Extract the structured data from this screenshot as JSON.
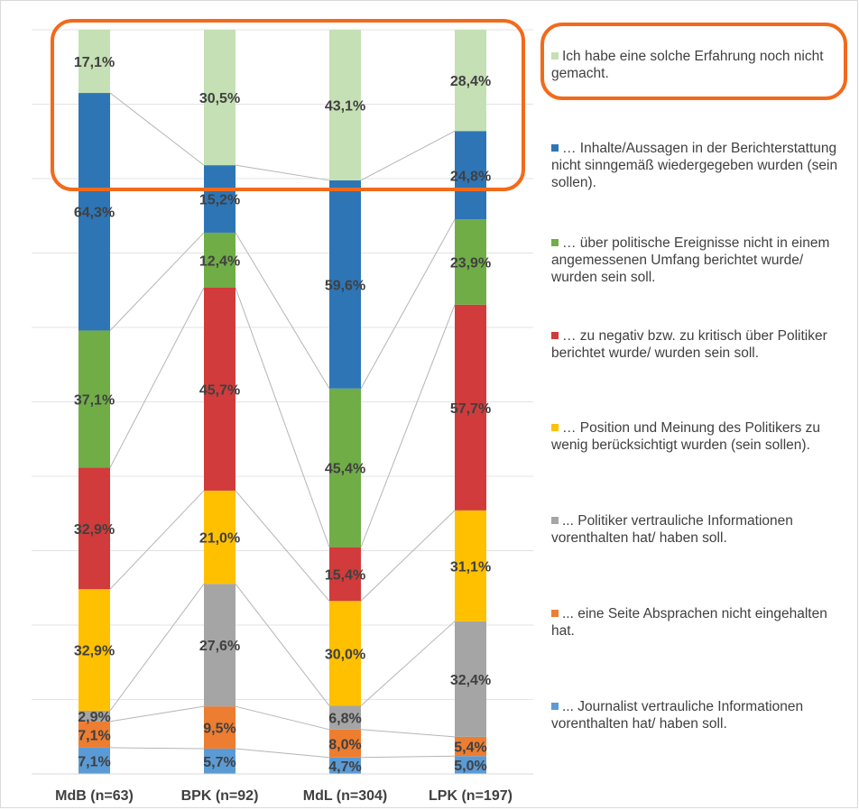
{
  "chart_data": {
    "type": "bar",
    "stacked": true,
    "percent_stacked": true,
    "categories": [
      "MdB (n=63)",
      "BPK (n=92)",
      "MdL (n=304)",
      "LPK (n=197)"
    ],
    "series": [
      {
        "name": "...  Journalist vertrauliche Informationen vorenthalten hat/ haben soll.",
        "color": "#5b9bd5",
        "values": [
          7.1,
          5.7,
          4.7,
          5.0
        ],
        "labels": [
          "7,1%",
          "5,7%",
          "4,7%",
          "5,0%"
        ]
      },
      {
        "name": "... eine Seite Absprachen nicht eingehalten hat.",
        "color": "#ed7d31",
        "values": [
          7.1,
          9.5,
          8.0,
          5.4
        ],
        "labels": [
          "7,1%",
          "9,5%",
          "8,0%",
          "5,4%"
        ]
      },
      {
        "name": "... Politiker vertrauliche Informationen vorenthalten hat/ haben soll.",
        "color": "#a5a5a5",
        "values": [
          2.9,
          27.6,
          6.8,
          32.4
        ],
        "labels": [
          "2,9%",
          "27,6%",
          "6,8%",
          "32,4%"
        ]
      },
      {
        "name": "… Position und Meinung des Politikers zu wenig berücksichtigt wurden (sein sollen).",
        "color": "#ffc000",
        "values": [
          32.9,
          21.0,
          30.0,
          31.1
        ],
        "labels": [
          "32,9%",
          "21,0%",
          "30,0%",
          "31,1%"
        ]
      },
      {
        "name": "… zu negativ bzw. zu kritisch über Politiker berichtet wurde/ wurden sein soll.",
        "color": "#d13b3b",
        "values": [
          32.9,
          45.7,
          15.4,
          57.7
        ],
        "labels": [
          "32,9%",
          "45,7%",
          "15,4%",
          "57,7%"
        ]
      },
      {
        "name": "… über politische Ereignisse nicht in einem angemessenen Umfang berichtet wurde/ wurden sein soll.",
        "color": "#70ad47",
        "values": [
          37.1,
          12.4,
          45.4,
          23.9
        ],
        "labels": [
          "37,1%",
          "12,4%",
          "45,4%",
          "23,9%"
        ]
      },
      {
        "name": "… Inhalte/Aussagen in der Berichterstattung nicht sinngemäß wiedergegeben wurden (sein sollen).",
        "color": "#2e75b6",
        "values": [
          64.3,
          15.2,
          59.6,
          24.8
        ],
        "labels": [
          "64,3%",
          "15,2%",
          "59,6%",
          "24,8%"
        ]
      },
      {
        "name": "Ich habe eine solche Erfahrung noch nicht gemacht.",
        "color": "#c5e0b4",
        "values": [
          17.1,
          30.5,
          43.1,
          28.4
        ],
        "labels": [
          "17,1%",
          "30,5%",
          "43,1%",
          "28,4%"
        ]
      }
    ],
    "legend_order": [
      7,
      6,
      5,
      4,
      3,
      2,
      1,
      0
    ],
    "legend_position": "right",
    "grid": true,
    "series_lines": true,
    "highlight": "Ich habe eine solche Erfahrung noch nicht gemacht.",
    "highlight_color": "#f26a1b",
    "title": "",
    "xlabel": "",
    "ylabel": ""
  }
}
